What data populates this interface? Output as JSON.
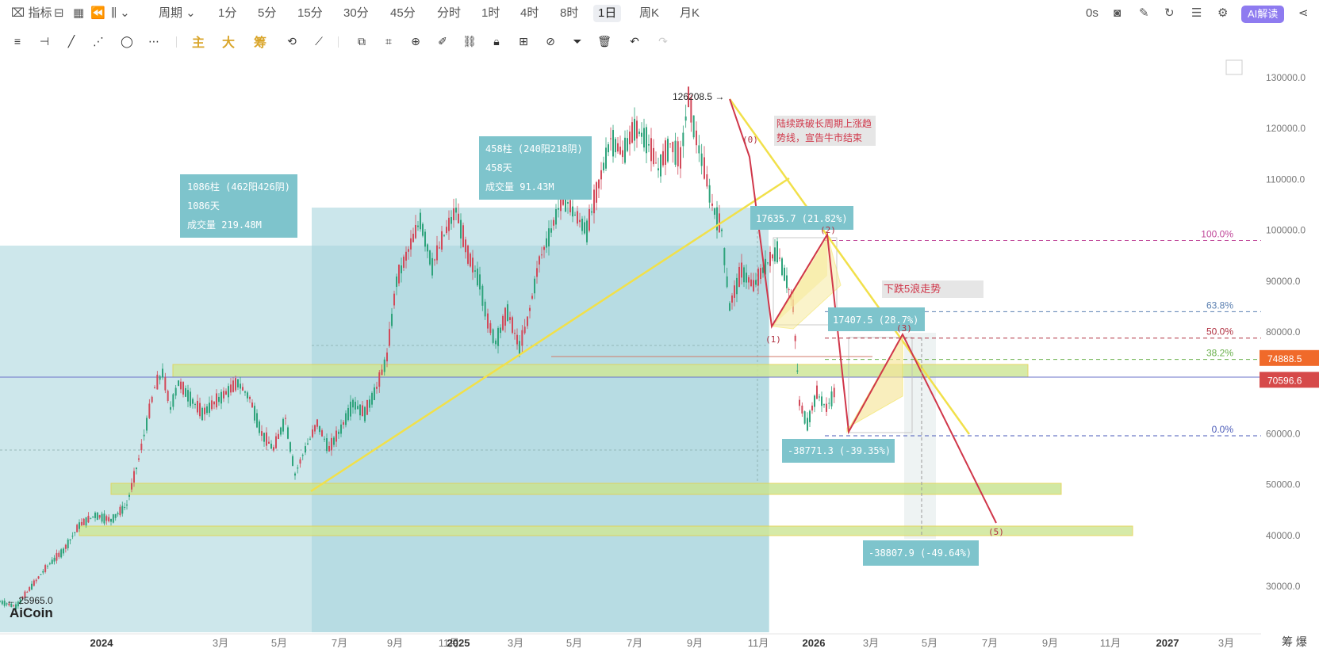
{
  "topbar": {
    "indicator_label": "指标",
    "period_label": "周期",
    "timeframes": [
      "1分",
      "5分",
      "15分",
      "30分",
      "45分",
      "分时",
      "1时",
      "4时",
      "8时",
      "1日",
      "周K",
      "月K"
    ],
    "active_timeframe": "1日",
    "countdown": "0s",
    "ai_label": "AI解读"
  },
  "toolbar": {
    "main_label": "主",
    "big_label": "大",
    "chip_label": "筹"
  },
  "logo": "AiCoin",
  "bottom_right": "筹 爆",
  "colors": {
    "range_fill": "#b7dde2",
    "info_box": "#7ec4cc",
    "zone_fill": "#d9ec9c",
    "trend_yellow": "#f1e04a",
    "wave_red": "#d0374a",
    "price_tag_orange": "#f06a2a",
    "price_tag_red": "#d64a4a"
  },
  "chart_data": {
    "type": "candlestick",
    "y_ticks": [
      130000.0,
      120000.0,
      110000.0,
      100000.0,
      90000.0,
      80000.0,
      70000.0,
      60000.0,
      50000.0,
      40000.0,
      30000.0
    ],
    "y_tick_labels": [
      "130000.0",
      "120000.0",
      "110000.0",
      "100000.0",
      "90000.0",
      "80000.0",
      "70000.0",
      "60000.0",
      "50000.0",
      "40000.0",
      "30000.0"
    ],
    "ylim": [
      22500,
      133000
    ],
    "x_labels": [
      "2024",
      "3月",
      "5月",
      "7月",
      "9月",
      "11月",
      "2025",
      "3月",
      "5月",
      "7月",
      "9月",
      "11月",
      "2026",
      "3月",
      "5月",
      "7月",
      "9月",
      "11月",
      "2027",
      "3月"
    ],
    "price_tags": [
      {
        "value": 74888.5,
        "label": "74888.5",
        "color": "#f06a2a"
      },
      {
        "value": 70596.6,
        "label": "70596.6",
        "color": "#d64a4a"
      }
    ],
    "high_label": "126208.5",
    "low_label": "25965.0",
    "fib_levels": [
      {
        "pct": "100.0%",
        "value": 98000,
        "color": "#c0499a"
      },
      {
        "pct": "63.8%",
        "value": 84000,
        "color": "#5a7fb0"
      },
      {
        "pct": "50.0%",
        "value": 78800,
        "color": "#b03040"
      },
      {
        "pct": "38.2%",
        "value": 74600,
        "color": "#6ab04c"
      },
      {
        "pct": "0.0%",
        "value": 59600,
        "color": "#4a5ab8"
      }
    ],
    "info_boxes": [
      {
        "lines": [
          "1086柱 (462阳426阴)",
          "1086天",
          "成交量 219.48M"
        ]
      },
      {
        "lines": [
          "458柱 (240阳218阴)",
          "458天",
          "成交量 91.43M"
        ]
      }
    ],
    "measure_labels": [
      "17635.7 (21.82%)",
      "17407.5 (28.7%)",
      "-38771.3 (-39.35%)",
      "-38807.9 (-49.64%)"
    ],
    "wave_labels": [
      "(0)",
      "(1)",
      "(2)",
      "(3)",
      "(5)"
    ],
    "annotations": [
      {
        "lines": [
          "陆续跌破长周期上涨趋",
          "势线，宣告牛市结束"
        ]
      },
      {
        "lines": [
          "下跌5浪走势"
        ]
      }
    ],
    "price_path": [
      [
        0,
        27000
      ],
      [
        20,
        26000
      ],
      [
        40,
        30000
      ],
      [
        60,
        34000
      ],
      [
        80,
        37000
      ],
      [
        100,
        42000
      ],
      [
        120,
        44000
      ],
      [
        140,
        43000
      ],
      [
        160,
        46000
      ],
      [
        175,
        55000
      ],
      [
        185,
        62000
      ],
      [
        195,
        69000
      ],
      [
        205,
        72000
      ],
      [
        215,
        65000
      ],
      [
        225,
        70000
      ],
      [
        240,
        67000
      ],
      [
        255,
        64000
      ],
      [
        270,
        66000
      ],
      [
        285,
        68000
      ],
      [
        300,
        70000
      ],
      [
        315,
        67000
      ],
      [
        330,
        60000
      ],
      [
        345,
        57000
      ],
      [
        360,
        63000
      ],
      [
        372,
        52000
      ],
      [
        385,
        57000
      ],
      [
        400,
        62000
      ],
      [
        415,
        57000
      ],
      [
        430,
        61000
      ],
      [
        445,
        66000
      ],
      [
        460,
        64000
      ],
      [
        475,
        69000
      ],
      [
        488,
        75000
      ],
      [
        500,
        90000
      ],
      [
        515,
        96000
      ],
      [
        530,
        102000
      ],
      [
        545,
        93000
      ],
      [
        560,
        99000
      ],
      [
        575,
        104000
      ],
      [
        590,
        95000
      ],
      [
        605,
        90000
      ],
      [
        615,
        82000
      ],
      [
        625,
        78000
      ],
      [
        640,
        84000
      ],
      [
        655,
        77000
      ],
      [
        665,
        82000
      ],
      [
        680,
        94000
      ],
      [
        695,
        100000
      ],
      [
        710,
        107000
      ],
      [
        725,
        103000
      ],
      [
        740,
        100000
      ],
      [
        755,
        109000
      ],
      [
        770,
        118000
      ],
      [
        785,
        115000
      ],
      [
        800,
        120000
      ],
      [
        815,
        118000
      ],
      [
        830,
        112000
      ],
      [
        845,
        117000
      ],
      [
        858,
        114000
      ],
      [
        868,
        126000
      ],
      [
        878,
        118000
      ],
      [
        888,
        112000
      ],
      [
        898,
        105000
      ],
      [
        910,
        100000
      ],
      [
        920,
        85000
      ],
      [
        935,
        92000
      ],
      [
        950,
        89000
      ],
      [
        965,
        93000
      ],
      [
        980,
        96000
      ],
      [
        992,
        90000
      ],
      [
        1000,
        85000
      ],
      [
        1008,
        66000
      ],
      [
        1018,
        62000
      ],
      [
        1030,
        68000
      ],
      [
        1042,
        65000
      ],
      [
        1055,
        69000
      ]
    ]
  }
}
